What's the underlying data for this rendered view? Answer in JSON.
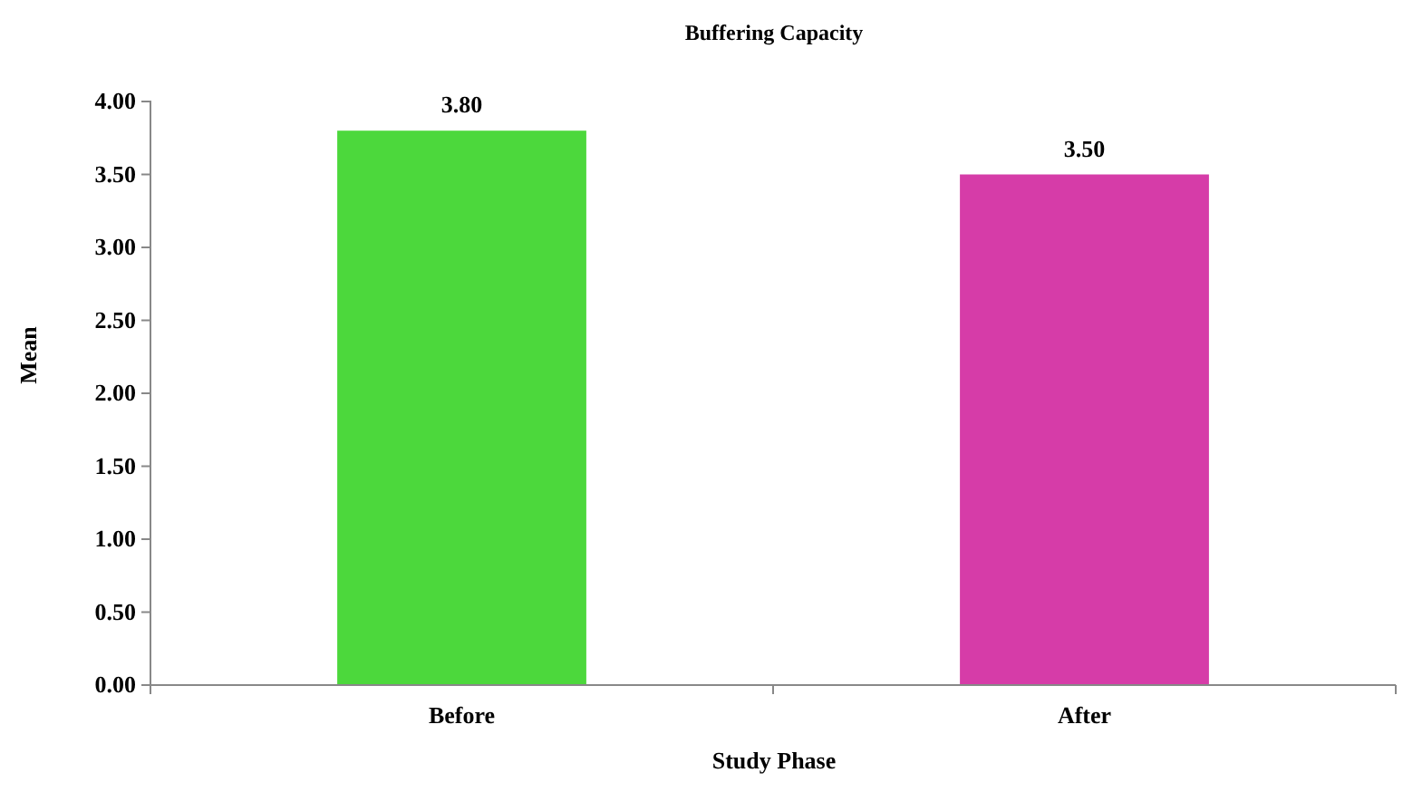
{
  "chart_data": {
    "type": "bar",
    "title": "Buffering Capacity",
    "xlabel": "Study Phase",
    "ylabel": "Mean",
    "categories": [
      "Before",
      "After"
    ],
    "values": [
      3.8,
      3.5
    ],
    "colors": [
      "#4cd83c",
      "#d63ca8"
    ],
    "value_labels": [
      "3.80",
      "3.50"
    ],
    "ylim": [
      0,
      4
    ],
    "yticks": [
      {
        "value": 0,
        "label": "0.00"
      },
      {
        "value": 0.5,
        "label": "0.50"
      },
      {
        "value": 1,
        "label": "1.00"
      },
      {
        "value": 1.5,
        "label": "1.50"
      },
      {
        "value": 2,
        "label": "2.00"
      },
      {
        "value": 2.5,
        "label": "2.50"
      },
      {
        "value": 3,
        "label": "3.00"
      },
      {
        "value": 3.5,
        "label": "3.50"
      },
      {
        "value": 4,
        "label": "4.00"
      }
    ],
    "grid": false
  }
}
